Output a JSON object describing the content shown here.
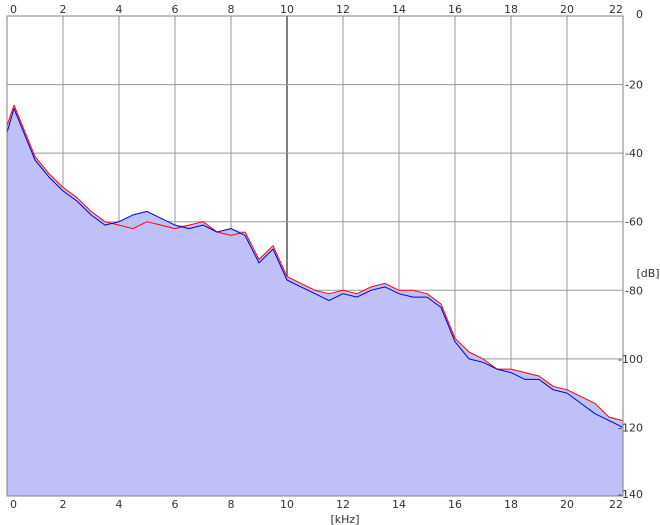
{
  "chart_data": {
    "type": "line",
    "title": "",
    "xlabel": "[kHz]",
    "ylabel": "[dB]",
    "xlim": [
      0,
      22
    ],
    "ylim": [
      -140,
      0
    ],
    "x_ticks": [
      0,
      2,
      4,
      6,
      8,
      10,
      12,
      14,
      16,
      18,
      20,
      22
    ],
    "x_tick_labels": [
      "0",
      "2",
      "4",
      "6",
      "8",
      "10",
      "12",
      "14",
      "16",
      "18",
      "20",
      "22"
    ],
    "y_ticks": [
      0,
      -20,
      -40,
      -60,
      -80,
      -100,
      -120,
      -140
    ],
    "y_tick_labels": [
      "0",
      "-20",
      "-40",
      "-60",
      "-80",
      "-100",
      "-120",
      "-140"
    ],
    "grid": true,
    "fill_color": "#c0c0f8",
    "series": [
      {
        "color": "#ff0000",
        "x": [
          0,
          0.25,
          0.5,
          1,
          1.5,
          2,
          2.5,
          3,
          3.5,
          4,
          4.5,
          5,
          5.5,
          6,
          6.5,
          7,
          7.5,
          8,
          8.5,
          9,
          9.5,
          10,
          10.5,
          11,
          11.5,
          12,
          12.5,
          13,
          13.5,
          14,
          14.5,
          15,
          15.5,
          16,
          16.5,
          17,
          17.5,
          18,
          18.5,
          19,
          19.5,
          20,
          20.5,
          21,
          21.5,
          22
        ],
        "values": [
          -32,
          -26,
          -31,
          -41,
          -46,
          -50,
          -53,
          -57,
          -60,
          -61,
          -62,
          -60,
          -61,
          -62,
          -61,
          -60,
          -63,
          -64,
          -63,
          -71,
          -67,
          -76,
          -78,
          -80,
          -81,
          -80,
          -81,
          -79,
          -78,
          -80,
          -80,
          -81,
          -84,
          -94,
          -98,
          -100,
          -103,
          -103,
          -104,
          -105,
          -108,
          -109,
          -111,
          -113,
          -117,
          -118
        ]
      },
      {
        "color": "#0000cc",
        "x": [
          0,
          0.25,
          0.5,
          1,
          1.5,
          2,
          2.5,
          3,
          3.5,
          4,
          4.5,
          5,
          5.5,
          6,
          6.5,
          7,
          7.5,
          8,
          8.5,
          9,
          9.5,
          10,
          10.5,
          11,
          11.5,
          12,
          12.5,
          13,
          13.5,
          14,
          14.5,
          15,
          15.5,
          16,
          16.5,
          17,
          17.5,
          18,
          18.5,
          19,
          19.5,
          20,
          20.5,
          21,
          21.5,
          22
        ],
        "values": [
          -34,
          -27,
          -32,
          -42,
          -47,
          -51,
          -54,
          -58,
          -61,
          -60,
          -58,
          -57,
          -59,
          -61,
          -62,
          -61,
          -63,
          -62,
          -64,
          -72,
          -68,
          -77,
          -79,
          -81,
          -83,
          -81,
          -82,
          -80,
          -79,
          -81,
          -82,
          -82,
          -85,
          -95,
          -100,
          -101,
          -103,
          -104,
          -106,
          -106,
          -109,
          -110,
          -113,
          -116,
          -118,
          -120
        ]
      }
    ]
  }
}
